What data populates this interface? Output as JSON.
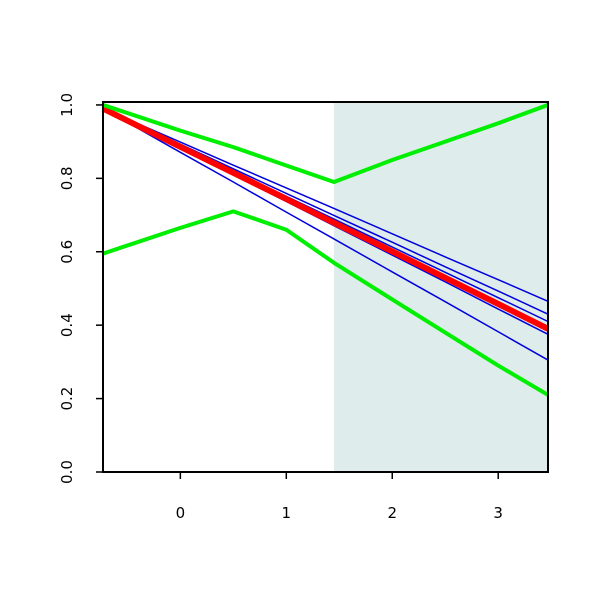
{
  "chart_data": {
    "type": "line",
    "x": [
      -0.73,
      0,
      0.5,
      1,
      1.45,
      2,
      2.5,
      3,
      3.47
    ],
    "series": [
      {
        "color": "#0000dd",
        "line_width": 1.5,
        "values": [
          0.99,
          0.899,
          0.836,
          0.774,
          0.718,
          0.649,
          0.586,
          0.524,
          0.465
        ]
      },
      {
        "color": "#0000dd",
        "line_width": 1.5,
        "values": [
          0.99,
          0.893,
          0.826,
          0.759,
          0.699,
          0.626,
          0.559,
          0.493,
          0.43
        ]
      },
      {
        "color": "#0000dd",
        "line_width": 1.5,
        "values": [
          0.99,
          0.889,
          0.82,
          0.751,
          0.689,
          0.613,
          0.544,
          0.475,
          0.41
        ]
      },
      {
        "color": "#0000dd",
        "line_width": 1.5,
        "values": [
          0.99,
          0.883,
          0.81,
          0.737,
          0.671,
          0.591,
          0.518,
          0.444,
          0.375
        ]
      },
      {
        "color": "#0000dd",
        "line_width": 1.5,
        "values": [
          0.99,
          0.871,
          0.79,
          0.708,
          0.635,
          0.545,
          0.464,
          0.382,
          0.305
        ]
      },
      {
        "color": "#ff0000",
        "line_width": 6,
        "values": [
          0.99,
          0.886,
          0.815,
          0.744,
          0.679,
          0.601,
          0.529,
          0.458,
          0.39
        ]
      },
      {
        "color": "#00ee00",
        "line_width": 4,
        "values": [
          1.0,
          0.93,
          0.885,
          0.835,
          0.79,
          0.85,
          0.9,
          0.95,
          1.0
        ]
      },
      {
        "color": "#00ee00",
        "line_width": 4,
        "values": [
          0.595,
          0.665,
          0.71,
          0.66,
          0.57,
          0.47,
          0.38,
          0.29,
          0.21
        ]
      }
    ],
    "shaded_region": {
      "from": 1.45,
      "to": 3.47,
      "color": "#deecec"
    },
    "xlim": [
      -0.73,
      3.47
    ],
    "ylim": [
      0,
      1.008
    ],
    "xticks": [
      0,
      1,
      2,
      3
    ],
    "yticks": [
      {
        "value": 0,
        "label": "0.0"
      },
      {
        "value": 0.2,
        "label": "0.2"
      },
      {
        "value": 0.4,
        "label": "0.4"
      },
      {
        "value": 0.6,
        "label": "0.6"
      },
      {
        "value": 0.8,
        "label": "0.8"
      },
      {
        "value": 1.0,
        "label": "1.0"
      }
    ]
  }
}
